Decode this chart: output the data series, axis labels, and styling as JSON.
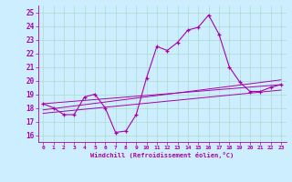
{
  "xlabel": "Windchill (Refroidissement éolien,°C)",
  "bg_color": "#cceeff",
  "grid_color": "#aaddcc",
  "line_color": "#aa00aa",
  "x_ticks": [
    0,
    1,
    2,
    3,
    4,
    5,
    6,
    7,
    8,
    9,
    10,
    11,
    12,
    13,
    14,
    15,
    16,
    17,
    18,
    19,
    20,
    21,
    22,
    23
  ],
  "ylim": [
    15.5,
    25.5
  ],
  "xlim": [
    -0.5,
    23.5
  ],
  "yticks": [
    16,
    17,
    18,
    19,
    20,
    21,
    22,
    23,
    24,
    25
  ],
  "main_series": [
    18.3,
    18.0,
    17.5,
    17.5,
    18.8,
    19.0,
    18.0,
    16.2,
    16.3,
    17.5,
    20.2,
    22.5,
    22.2,
    22.8,
    23.7,
    23.9,
    24.8,
    23.4,
    21.0,
    19.9,
    19.2,
    19.2,
    19.5,
    19.7
  ],
  "trend_lines": [
    [
      [
        0,
        23
      ],
      [
        18.3,
        19.7
      ]
    ],
    [
      [
        0,
        23
      ],
      [
        17.6,
        19.3
      ]
    ],
    [
      [
        0,
        23
      ],
      [
        17.85,
        20.05
      ]
    ]
  ]
}
